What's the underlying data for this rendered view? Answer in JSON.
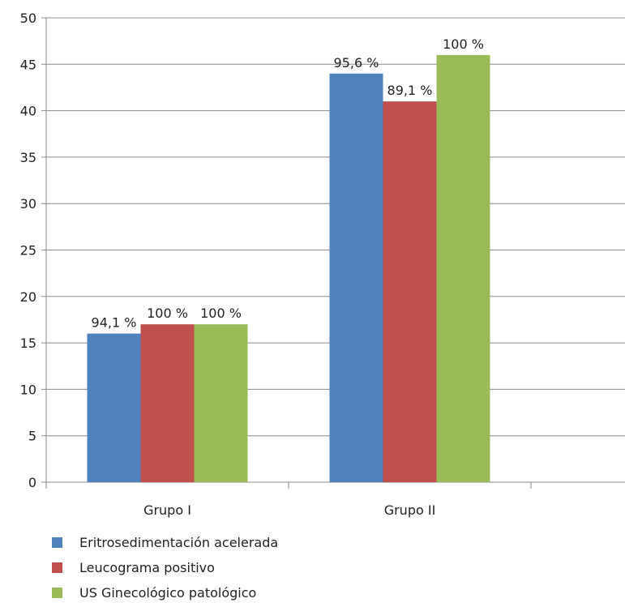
{
  "chart_data": {
    "type": "bar",
    "categories": [
      "Grupo I",
      "Grupo II"
    ],
    "series": [
      {
        "name": "Eritrosedimentación acelerada",
        "color": "#4f81bd",
        "values": [
          16,
          44
        ],
        "labels": [
          "94,1 %",
          "95,6 %"
        ]
      },
      {
        "name": "Leucograma positivo",
        "color": "#c0504d",
        "values": [
          17,
          41
        ],
        "labels": [
          "100 %",
          "89,1 %"
        ]
      },
      {
        "name": "US Ginecológico patológico",
        "color": "#9bbb59",
        "values": [
          17,
          46
        ],
        "labels": [
          "100 %",
          "100 %"
        ]
      }
    ],
    "ylim": [
      0,
      50
    ],
    "yticks": [
      0,
      5,
      10,
      15,
      20,
      25,
      30,
      35,
      40,
      45,
      50
    ],
    "ytick_labels": [
      "0",
      "5",
      "10",
      "15",
      "20",
      "25",
      "30",
      "35",
      "40",
      "45",
      "50"
    ],
    "grid": true,
    "legend_position": "bottom",
    "title": "",
    "xlabel": "",
    "ylabel": ""
  }
}
